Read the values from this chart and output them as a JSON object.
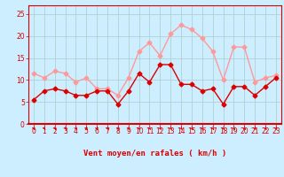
{
  "hours": [
    0,
    1,
    2,
    3,
    4,
    5,
    6,
    7,
    8,
    9,
    10,
    11,
    12,
    13,
    14,
    15,
    16,
    17,
    18,
    19,
    20,
    21,
    22,
    23
  ],
  "wind_avg": [
    5.5,
    7.5,
    8.0,
    7.5,
    6.5,
    6.5,
    7.5,
    7.5,
    4.5,
    7.5,
    11.5,
    9.5,
    13.5,
    13.5,
    9.0,
    9.0,
    7.5,
    8.0,
    4.5,
    8.5,
    8.5,
    6.5,
    8.5,
    10.5
  ],
  "wind_gust": [
    11.5,
    10.5,
    12.0,
    11.5,
    9.5,
    10.5,
    8.0,
    8.0,
    6.5,
    10.5,
    16.5,
    18.5,
    15.5,
    20.5,
    22.5,
    21.5,
    19.5,
    16.5,
    10.0,
    17.5,
    17.5,
    9.5,
    10.5,
    11.0
  ],
  "avg_color": "#dd0000",
  "gust_color": "#ff9999",
  "bg_color": "#cceeff",
  "grid_color": "#aacccc",
  "xlabel": "Vent moyen/en rafales ( km/h )",
  "yticks": [
    0,
    5,
    10,
    15,
    20,
    25
  ],
  "ylim": [
    0,
    27
  ],
  "xlim": [
    -0.5,
    23.5
  ],
  "marker": "D",
  "markersize": 2.5,
  "linewidth": 1.0,
  "xlabel_fontsize": 6.5,
  "tick_fontsize": 5.5
}
